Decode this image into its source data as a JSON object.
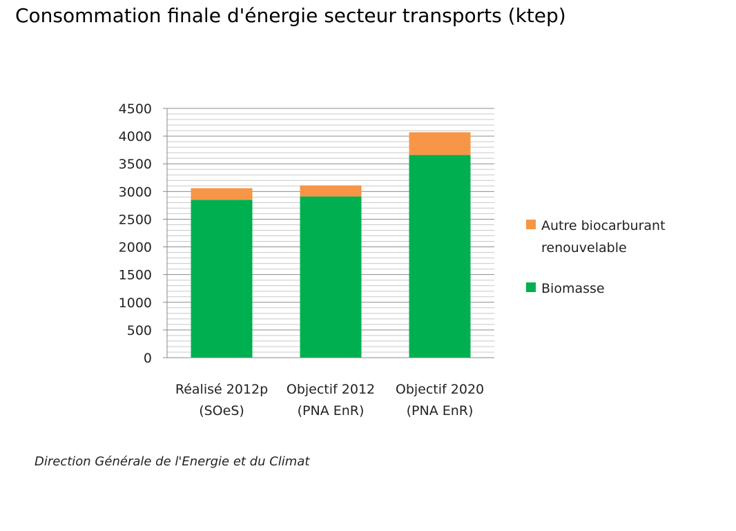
{
  "title": "Consommation finale d'énergie secteur transports (ktep)",
  "source": "Direction Générale de l'Energie et du Climat",
  "chart_data": {
    "type": "bar",
    "stacked": true,
    "categories": [
      [
        "Réalisé 2012p",
        "(SOeS)"
      ],
      [
        "Objectif 2012",
        "(PNA EnR)"
      ],
      [
        "Objectif 2020",
        "(PNA EnR)"
      ]
    ],
    "series": [
      {
        "name": "Biomasse",
        "color": "#00b050",
        "values": [
          2850,
          2910,
          3660
        ]
      },
      {
        "name": [
          "Autre biocarburant",
          "renouvelable"
        ],
        "color": "#f79646",
        "values": [
          210,
          200,
          410
        ]
      }
    ],
    "ylim": [
      0,
      4500
    ],
    "yticks": [
      0,
      500,
      1000,
      1500,
      2000,
      2500,
      3000,
      3500,
      4000,
      4500
    ],
    "grid": true,
    "legend": "right"
  }
}
